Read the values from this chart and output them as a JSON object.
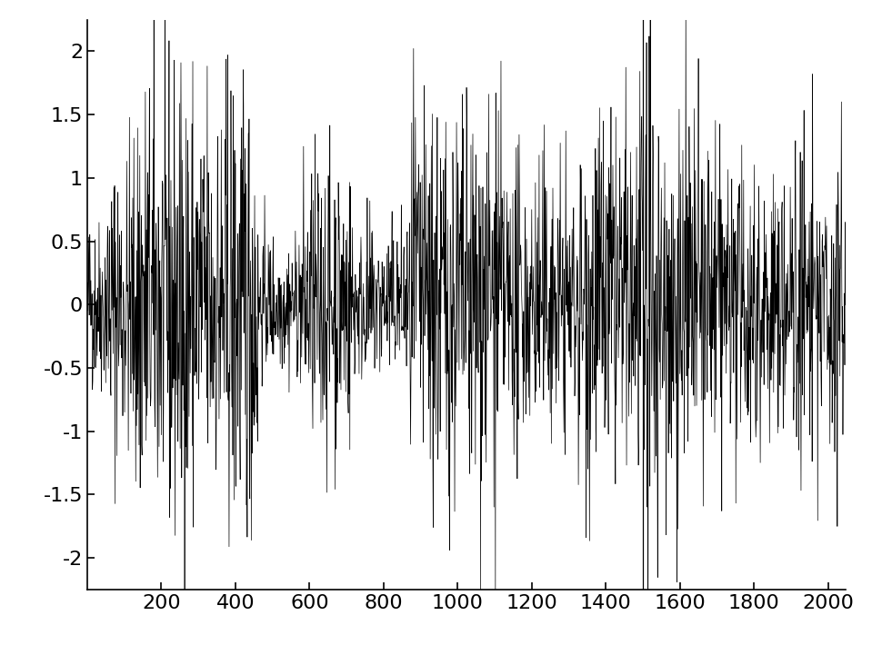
{
  "n_samples": 2048,
  "seed": 42,
  "xlim": [
    0,
    2048
  ],
  "ylim": [
    -2.25,
    2.25
  ],
  "xticks": [
    200,
    400,
    600,
    800,
    1000,
    1200,
    1400,
    1600,
    1800,
    2000
  ],
  "yticks": [
    -2,
    -1.5,
    -1,
    -0.5,
    0,
    0.5,
    1,
    1.5,
    2
  ],
  "ytick_labels": [
    "-2",
    "-1.5",
    "-1",
    "-0.5",
    "0",
    "0.5",
    "1",
    "1.5",
    "2"
  ],
  "vline_x": 1500,
  "line_color": "#000000",
  "line_width": 0.5,
  "background_color": "#ffffff",
  "figsize": [
    9.59,
    7.21
  ],
  "dpi": 100,
  "tick_fontsize": 16,
  "spine_linewidth": 1.2,
  "envelope_segments": [
    {
      "start": 0,
      "end": 50,
      "amp": 0.35
    },
    {
      "start": 50,
      "end": 130,
      "amp": 0.6
    },
    {
      "start": 130,
      "end": 460,
      "amp": 0.9
    },
    {
      "start": 460,
      "end": 580,
      "amp": 0.28
    },
    {
      "start": 580,
      "end": 720,
      "amp": 0.55
    },
    {
      "start": 720,
      "end": 870,
      "amp": 0.32
    },
    {
      "start": 870,
      "end": 1120,
      "amp": 0.8
    },
    {
      "start": 1120,
      "end": 1320,
      "amp": 0.55
    },
    {
      "start": 1320,
      "end": 1500,
      "amp": 0.72
    },
    {
      "start": 1500,
      "end": 1520,
      "amp": 1.4
    },
    {
      "start": 1520,
      "end": 1720,
      "amp": 0.75
    },
    {
      "start": 1720,
      "end": 2048,
      "amp": 0.58
    }
  ]
}
